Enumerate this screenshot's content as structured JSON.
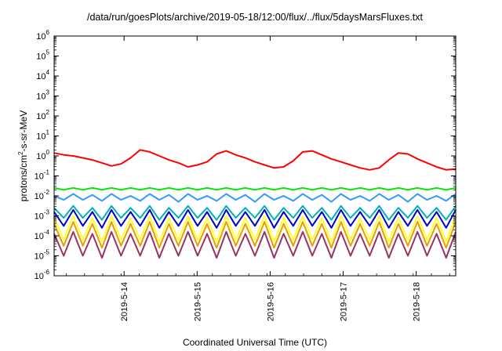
{
  "chart_data": {
    "type": "line",
    "title": "/data/run/goesPlots/archive/2019-05-18/12:00/flux/../flux/5daysMarsFluxes.txt",
    "xlabel": "Coordinated Universal Time (UTC)",
    "ylabel": "protons/cm2-s-sr-MeV",
    "ylabel_parts": {
      "pre": "protons/cm",
      "sup": "2",
      "post": "-s-sr-MeV"
    },
    "y_scale": "log",
    "ylim_exponents": [
      -6,
      6
    ],
    "y_ticks": [
      {
        "base": "10",
        "exp": "-6"
      },
      {
        "base": "10",
        "exp": "-5"
      },
      {
        "base": "10",
        "exp": "-4"
      },
      {
        "base": "10",
        "exp": "-3"
      },
      {
        "base": "10",
        "exp": "-2"
      },
      {
        "base": "10",
        "exp": "-1"
      },
      {
        "base": "10",
        "exp": "0"
      },
      {
        "base": "10",
        "exp": "1"
      },
      {
        "base": "10",
        "exp": "2"
      },
      {
        "base": "10",
        "exp": "3"
      },
      {
        "base": "10",
        "exp": "4"
      },
      {
        "base": "10",
        "exp": "5"
      },
      {
        "base": "10",
        "exp": "6"
      }
    ],
    "x_range": [
      "2019-05-13 01:00",
      "2019-05-18 13:00"
    ],
    "x_ticks": [
      {
        "label": "2019-5-14",
        "date": "2019-05-14 00:00"
      },
      {
        "label": "2019-5-15",
        "date": "2019-05-15 00:00"
      },
      {
        "label": "2019-5-16",
        "date": "2019-05-16 00:00"
      },
      {
        "label": "2019-5-17",
        "date": "2019-05-17 00:00"
      },
      {
        "label": "2019-5-18",
        "date": "2019-05-18 00:00"
      }
    ],
    "grid": false,
    "series": [
      {
        "color": "#ff0000",
        "values_log10": [
          0.15,
          0.05,
          0.0,
          -0.1,
          -0.2,
          -0.35,
          -0.5,
          -0.4,
          -0.1,
          0.3,
          0.2,
          0.0,
          -0.2,
          -0.35,
          -0.55,
          -0.45,
          -0.3,
          0.1,
          0.25,
          0.05,
          -0.1,
          -0.3,
          -0.45,
          -0.6,
          -0.55,
          -0.25,
          0.2,
          0.25,
          0.05,
          -0.15,
          -0.3,
          -0.45,
          -0.6,
          -0.7,
          -0.6,
          -0.2,
          0.15,
          0.1,
          -0.15,
          -0.35,
          -0.55,
          -0.7,
          -0.65
        ]
      },
      {
        "color": "#00e600",
        "values_log10": [
          -1.6,
          -1.7,
          -1.6,
          -1.7,
          -1.6,
          -1.7,
          -1.6,
          -1.7,
          -1.6,
          -1.7,
          -1.6,
          -1.7,
          -1.6,
          -1.7,
          -1.6,
          -1.7,
          -1.6,
          -1.7,
          -1.6,
          -1.7,
          -1.6,
          -1.7,
          -1.6,
          -1.7,
          -1.6,
          -1.7,
          -1.6,
          -1.7,
          -1.6,
          -1.7,
          -1.6,
          -1.7,
          -1.6,
          -1.7,
          -1.6,
          -1.7,
          -1.6,
          -1.7,
          -1.6,
          -1.7,
          -1.6,
          -1.7,
          -1.6
        ]
      },
      {
        "color": "#3399ff",
        "values_log10": [
          -2.0,
          -2.2,
          -1.9,
          -2.2,
          -1.95,
          -2.25,
          -1.9,
          -2.2,
          -2.0,
          -2.25,
          -1.9,
          -2.2,
          -1.95,
          -2.3,
          -1.9,
          -2.2,
          -2.0,
          -2.25,
          -1.9,
          -2.2,
          -1.95,
          -2.3,
          -1.9,
          -2.2,
          -2.0,
          -2.25,
          -1.9,
          -2.2,
          -1.95,
          -2.3,
          -1.9,
          -2.2,
          -2.0,
          -2.25,
          -1.9,
          -2.2,
          -1.95,
          -2.3,
          -1.9,
          -2.2,
          -2.0,
          -2.25,
          -1.9
        ]
      },
      {
        "color": "#00b3b3",
        "values_log10": [
          -2.6,
          -3.1,
          -2.5,
          -3.1,
          -2.6,
          -3.2,
          -2.5,
          -3.1,
          -2.6,
          -3.1,
          -2.5,
          -3.2,
          -2.6,
          -3.1,
          -2.5,
          -3.1,
          -2.6,
          -3.2,
          -2.5,
          -3.1,
          -2.6,
          -3.1,
          -2.5,
          -3.2,
          -2.6,
          -3.1,
          -2.5,
          -3.1,
          -2.6,
          -3.2,
          -2.5,
          -3.1,
          -2.6,
          -3.1,
          -2.5,
          -3.2,
          -2.6,
          -3.1,
          -2.5,
          -3.1,
          -2.6,
          -3.2,
          -2.5
        ]
      },
      {
        "color": "#0000cc",
        "values_log10": [
          -2.8,
          -3.5,
          -2.7,
          -3.5,
          -2.8,
          -3.6,
          -2.7,
          -3.5,
          -2.8,
          -3.5,
          -2.7,
          -3.6,
          -2.8,
          -3.5,
          -2.7,
          -3.5,
          -2.8,
          -3.6,
          -2.7,
          -3.5,
          -2.8,
          -3.5,
          -2.7,
          -3.6,
          -2.8,
          -3.5,
          -2.7,
          -3.5,
          -2.8,
          -3.6,
          -2.7,
          -3.5,
          -2.8,
          -3.5,
          -2.7,
          -3.6,
          -2.8,
          -3.5,
          -2.7,
          -3.5,
          -2.8,
          -3.6,
          -2.7
        ]
      },
      {
        "color": "#ffff33",
        "values_log10": [
          -3.1,
          -4.2,
          -3.0,
          -4.2,
          -3.1,
          -4.3,
          -3.0,
          -4.2,
          -3.1,
          -4.2,
          -3.0,
          -4.3,
          -3.1,
          -4.2,
          -3.0,
          -4.2,
          -3.1,
          -4.3,
          -3.0,
          -4.2,
          -3.1,
          -4.2,
          -3.0,
          -4.3,
          -3.1,
          -4.2,
          -3.0,
          -4.2,
          -3.1,
          -4.3,
          -3.0,
          -4.2,
          -3.1,
          -4.2,
          -3.0,
          -4.3,
          -3.1,
          -4.2,
          -3.0,
          -4.2,
          -3.1,
          -4.3,
          -3.0
        ]
      },
      {
        "color": "#e6a000",
        "values_log10": [
          -3.4,
          -4.5,
          -3.3,
          -4.5,
          -3.4,
          -4.6,
          -3.3,
          -4.5,
          -3.4,
          -4.5,
          -3.3,
          -4.6,
          -3.4,
          -4.5,
          -3.3,
          -4.5,
          -3.4,
          -4.6,
          -3.3,
          -4.5,
          -3.4,
          -4.5,
          -3.3,
          -4.6,
          -3.4,
          -4.5,
          -3.3,
          -4.5,
          -3.4,
          -4.6,
          -3.3,
          -4.5,
          -3.4,
          -4.5,
          -3.3,
          -4.6,
          -3.4,
          -4.5,
          -3.3,
          -4.5,
          -3.4,
          -4.6,
          -3.3
        ]
      },
      {
        "color": "#993366",
        "values_log10": [
          -3.9,
          -5.0,
          -3.8,
          -5.0,
          -3.9,
          -5.1,
          -3.8,
          -5.0,
          -3.9,
          -5.0,
          -3.8,
          -5.1,
          -3.9,
          -5.0,
          -3.8,
          -5.0,
          -3.9,
          -5.1,
          -3.8,
          -5.0,
          -3.9,
          -5.0,
          -3.8,
          -5.1,
          -3.9,
          -5.0,
          -3.8,
          -5.0,
          -3.9,
          -5.1,
          -3.8,
          -5.0,
          -3.9,
          -5.0,
          -3.8,
          -5.1,
          -3.9,
          -5.0,
          -3.8,
          -5.0,
          -3.9,
          -5.1,
          -3.8
        ]
      }
    ]
  }
}
